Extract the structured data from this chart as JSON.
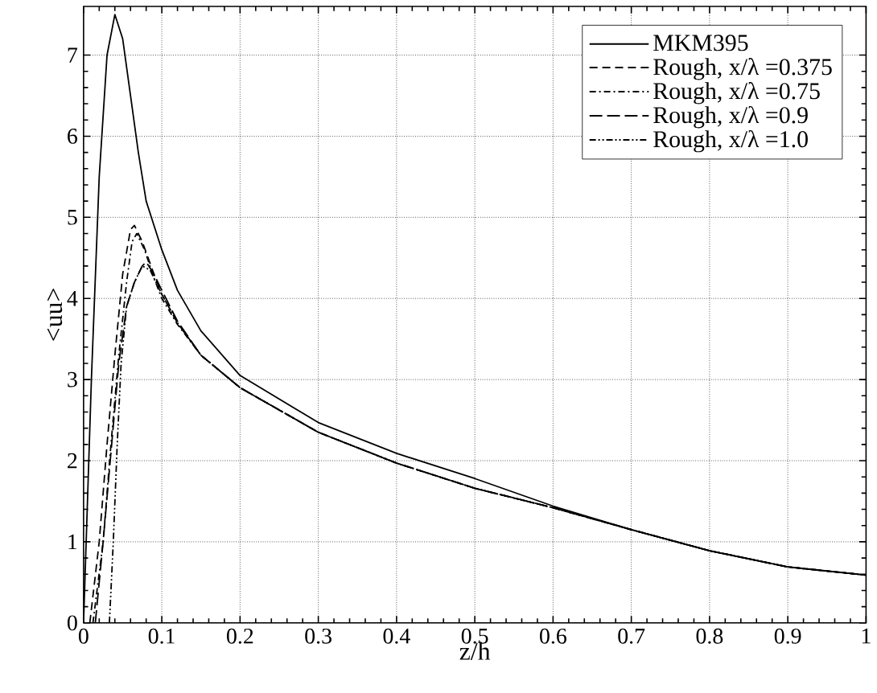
{
  "chart_data": {
    "type": "line",
    "xlabel": "z/h",
    "ylabel": "<uu>",
    "xlim": [
      0,
      1
    ],
    "ylim": [
      0,
      7.6
    ],
    "xticks": [
      0,
      0.1,
      0.2,
      0.3,
      0.4,
      0.5,
      0.6,
      0.7,
      0.8,
      0.9,
      1
    ],
    "yticks": [
      0,
      1,
      2,
      3,
      4,
      5,
      6,
      7
    ],
    "grid": true,
    "legend": "top right",
    "marker": "none",
    "series": [
      {
        "name": "MKM395",
        "color": "#000000",
        "line_style": "solid",
        "x": [
          0,
          0.005,
          0.01,
          0.02,
          0.03,
          0.04,
          0.05,
          0.06,
          0.07,
          0.08,
          0.1,
          0.12,
          0.15,
          0.2,
          0.3,
          0.4,
          0.5,
          0.6,
          0.7,
          0.8,
          0.9,
          1.0
        ],
        "values": [
          0,
          1.5,
          3,
          5.5,
          7,
          7.5,
          7.2,
          6.5,
          5.8,
          5.2,
          4.6,
          4.1,
          3.6,
          3.05,
          2.47,
          2.09,
          1.78,
          1.44,
          1.15,
          0.89,
          0.69,
          0.59
        ]
      },
      {
        "name": "Rough, x/λ =0.375",
        "color": "#000000",
        "line_style": "dashed",
        "x": [
          0.008,
          0.02,
          0.03,
          0.04,
          0.05,
          0.06,
          0.065,
          0.075,
          0.09,
          0.1,
          0.12,
          0.15,
          0.2,
          0.3,
          0.4,
          0.5,
          0.6,
          0.7,
          0.8,
          0.9,
          1.0
        ],
        "values": [
          0,
          1,
          2.2,
          3.3,
          4.3,
          4.85,
          4.9,
          4.7,
          4.3,
          4.05,
          3.7,
          3.3,
          2.9,
          2.35,
          1.97,
          1.66,
          1.42,
          1.15,
          0.89,
          0.69,
          0.59
        ]
      },
      {
        "name": "Rough, x/λ =0.75",
        "color": "#000000",
        "line_style": "dashdot",
        "x": [
          0.012,
          0.025,
          0.035,
          0.045,
          0.055,
          0.062,
          0.068,
          0.078,
          0.09,
          0.1,
          0.12,
          0.15,
          0.2,
          0.3,
          0.4,
          0.5,
          0.6,
          0.7,
          0.8,
          0.9,
          1.0
        ],
        "values": [
          0,
          1,
          2.2,
          3.3,
          4.2,
          4.7,
          4.8,
          4.6,
          4.25,
          4.0,
          3.68,
          3.3,
          2.9,
          2.35,
          1.97,
          1.66,
          1.42,
          1.15,
          0.89,
          0.69,
          0.59
        ]
      },
      {
        "name": "Rough, x/λ =0.9",
        "color": "#000000",
        "line_style": "longdash",
        "x": [
          0.015,
          0.025,
          0.035,
          0.045,
          0.055,
          0.065,
          0.075,
          0.08,
          0.09,
          0.1,
          0.12,
          0.15,
          0.2,
          0.3,
          0.4,
          0.5,
          0.6,
          0.7,
          0.8,
          0.9,
          1.0
        ],
        "values": [
          0,
          1,
          2.1,
          3.2,
          3.9,
          4.2,
          4.4,
          4.45,
          4.3,
          4.1,
          3.72,
          3.3,
          2.9,
          2.35,
          1.97,
          1.66,
          1.42,
          1.15,
          0.89,
          0.69,
          0.59
        ]
      },
      {
        "name": "Rough, x/λ =1.0",
        "color": "#000000",
        "line_style": "dashdotdot",
        "x": [
          0.033,
          0.038,
          0.043,
          0.048,
          0.055,
          0.065,
          0.075,
          0.085,
          0.1,
          0.12,
          0.15,
          0.2,
          0.3,
          0.4,
          0.5,
          0.6,
          0.7,
          0.8,
          0.9,
          1.0
        ],
        "values": [
          0,
          1,
          2.2,
          3.2,
          3.9,
          4.2,
          4.4,
          4.35,
          4.05,
          3.7,
          3.3,
          2.9,
          2.35,
          1.97,
          1.66,
          1.42,
          1.15,
          0.89,
          0.69,
          0.59
        ]
      }
    ]
  }
}
